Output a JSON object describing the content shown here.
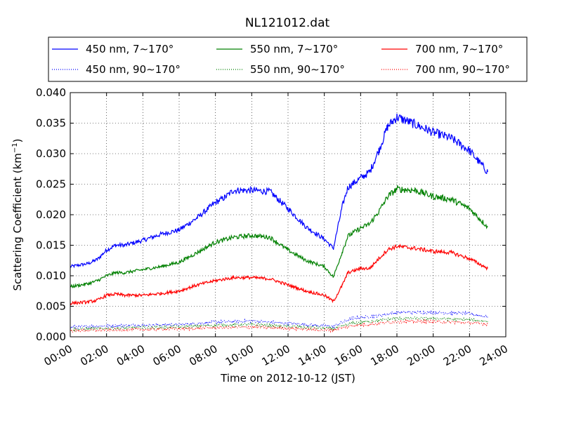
{
  "chart_data": {
    "type": "line",
    "title": "NL121012.dat",
    "xlabel": "Time on 2012-10-12 (JST)",
    "ylabel_main": "Scattering Coefficient (km",
    "ylabel_sup": "−1",
    "ylabel_end": ")",
    "xlim": [
      0,
      24
    ],
    "ylim": [
      0,
      0.04
    ],
    "xticks": [
      {
        "value": 0,
        "label": "00:00"
      },
      {
        "value": 2,
        "label": "02:00"
      },
      {
        "value": 4,
        "label": "04:00"
      },
      {
        "value": 6,
        "label": "06:00"
      },
      {
        "value": 8,
        "label": "08:00"
      },
      {
        "value": 10,
        "label": "10:00"
      },
      {
        "value": 12,
        "label": "12:00"
      },
      {
        "value": 14,
        "label": "14:00"
      },
      {
        "value": 16,
        "label": "16:00"
      },
      {
        "value": 18,
        "label": "18:00"
      },
      {
        "value": 20,
        "label": "20:00"
      },
      {
        "value": 22,
        "label": "22:00"
      },
      {
        "value": 24,
        "label": "24:00"
      }
    ],
    "yticks": [
      {
        "value": 0.0,
        "label": "0.000"
      },
      {
        "value": 0.005,
        "label": "0.005"
      },
      {
        "value": 0.01,
        "label": "0.010"
      },
      {
        "value": 0.015,
        "label": "0.015"
      },
      {
        "value": 0.02,
        "label": "0.020"
      },
      {
        "value": 0.025,
        "label": "0.025"
      },
      {
        "value": 0.03,
        "label": "0.030"
      },
      {
        "value": 0.035,
        "label": "0.035"
      },
      {
        "value": 0.04,
        "label": "0.040"
      }
    ],
    "grid": true,
    "legend_position": "top",
    "series": [
      {
        "name": "450 nm, 7∼170°",
        "color": "#0000ff",
        "style": "solid",
        "x": [
          0,
          1,
          1.5,
          2,
          2.5,
          3,
          4,
          5,
          6,
          7,
          8,
          8.5,
          9,
          10,
          11,
          12,
          13,
          14,
          14.5,
          15,
          15.3,
          16,
          16.5,
          17,
          17.5,
          18,
          19,
          20,
          21,
          22,
          23
        ],
        "values": [
          0.0115,
          0.012,
          0.0127,
          0.0142,
          0.015,
          0.015,
          0.0158,
          0.0168,
          0.0175,
          0.0195,
          0.022,
          0.0228,
          0.024,
          0.024,
          0.0238,
          0.021,
          0.018,
          0.016,
          0.0145,
          0.0215,
          0.0245,
          0.026,
          0.027,
          0.0305,
          0.0345,
          0.036,
          0.0348,
          0.0335,
          0.0325,
          0.0305,
          0.027
        ]
      },
      {
        "name": "450 nm, 90∼170°",
        "color": "#0000ff",
        "style": "dotted",
        "x": [
          0,
          2,
          4,
          6,
          8,
          10,
          12,
          14,
          14.5,
          15.5,
          17,
          18,
          20,
          22,
          23
        ],
        "values": [
          0.0016,
          0.0018,
          0.0019,
          0.002,
          0.0024,
          0.0026,
          0.0022,
          0.0018,
          0.0017,
          0.003,
          0.0035,
          0.004,
          0.004,
          0.0038,
          0.0033
        ]
      },
      {
        "name": "550 nm, 7∼170°",
        "color": "#008000",
        "style": "solid",
        "x": [
          0,
          1,
          1.5,
          2,
          2.5,
          3,
          4,
          5,
          6,
          7,
          8,
          9,
          10,
          11,
          12,
          13,
          14,
          14.5,
          15,
          15.3,
          16,
          16.5,
          17,
          17.5,
          18,
          19,
          20,
          21,
          22,
          23
        ],
        "values": [
          0.0082,
          0.0087,
          0.0092,
          0.01,
          0.0105,
          0.0105,
          0.011,
          0.0115,
          0.0122,
          0.0138,
          0.0155,
          0.0163,
          0.0166,
          0.0163,
          0.0142,
          0.0125,
          0.0115,
          0.0098,
          0.014,
          0.0165,
          0.0178,
          0.0185,
          0.0205,
          0.023,
          0.0242,
          0.024,
          0.023,
          0.0225,
          0.021,
          0.018
        ]
      },
      {
        "name": "550 nm, 90∼170°",
        "color": "#008000",
        "style": "dotted",
        "x": [
          0,
          2,
          4,
          6,
          8,
          10,
          12,
          14,
          14.5,
          15.5,
          17,
          18,
          20,
          22,
          23
        ],
        "values": [
          0.0012,
          0.0014,
          0.0015,
          0.0016,
          0.0019,
          0.002,
          0.0017,
          0.0014,
          0.0013,
          0.0022,
          0.0027,
          0.003,
          0.003,
          0.0028,
          0.0025
        ]
      },
      {
        "name": "700 nm, 7∼170°",
        "color": "#ff0000",
        "style": "solid",
        "x": [
          0,
          1,
          1.5,
          2,
          2.5,
          3,
          4,
          5,
          6,
          7,
          8,
          9,
          10,
          11,
          12,
          13,
          14,
          14.5,
          15,
          15.3,
          16,
          16.5,
          17,
          17.5,
          18,
          19,
          20,
          21,
          22,
          23
        ],
        "values": [
          0.0055,
          0.0057,
          0.006,
          0.0068,
          0.007,
          0.0068,
          0.0068,
          0.0071,
          0.0075,
          0.0085,
          0.0092,
          0.0097,
          0.0097,
          0.0095,
          0.0085,
          0.0075,
          0.0068,
          0.0058,
          0.0085,
          0.0105,
          0.0112,
          0.0112,
          0.0128,
          0.0143,
          0.0148,
          0.0145,
          0.014,
          0.0138,
          0.0128,
          0.0112
        ]
      },
      {
        "name": "700 nm, 90∼170°",
        "color": "#ff0000",
        "style": "dotted",
        "x": [
          0,
          2,
          4,
          6,
          8,
          10,
          12,
          14,
          14.5,
          15.5,
          17,
          18,
          20,
          22,
          23
        ],
        "values": [
          0.001,
          0.0011,
          0.0012,
          0.0013,
          0.0015,
          0.0016,
          0.0014,
          0.0011,
          0.0011,
          0.0018,
          0.0022,
          0.0025,
          0.0025,
          0.0023,
          0.0021
        ]
      }
    ]
  }
}
